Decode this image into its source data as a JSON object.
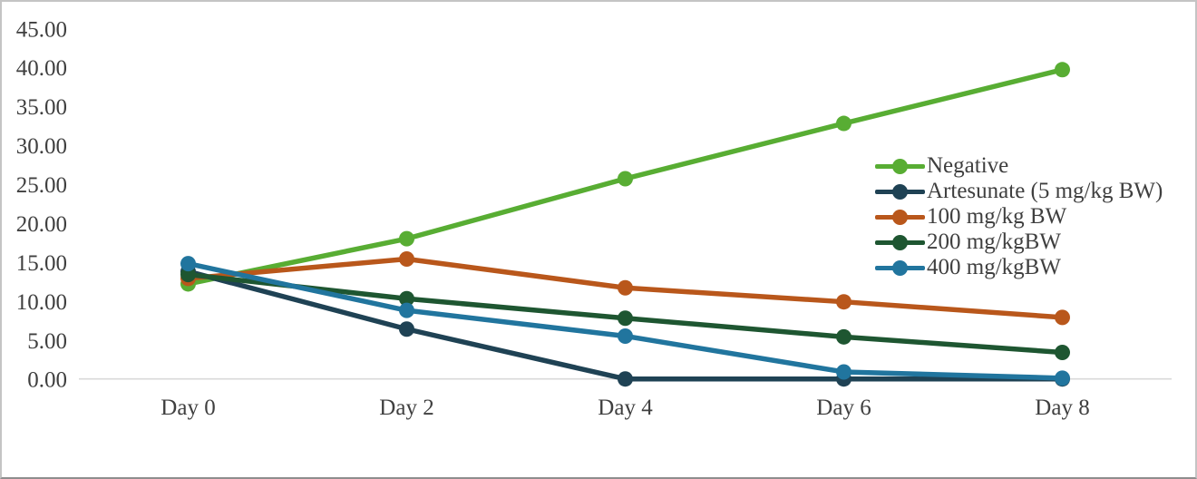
{
  "chart_data": {
    "type": "line",
    "title": "",
    "xlabel": "",
    "ylabel": "",
    "categories": [
      "Day 0",
      "Day 2",
      "Day 4",
      "Day 6",
      "Day 8"
    ],
    "series": [
      {
        "name": "Negative",
        "color": "#58ad33",
        "values": [
          12.2,
          18.0,
          25.7,
          32.8,
          39.7
        ]
      },
      {
        "name": "Artesunate (5 mg/kg BW)",
        "color": "#1f4254",
        "values": [
          13.8,
          6.4,
          0.0,
          0.0,
          0.0
        ]
      },
      {
        "name": "100 mg/kg BW",
        "color": "#b9571b",
        "values": [
          12.9,
          15.4,
          11.7,
          9.9,
          7.9
        ]
      },
      {
        "name": "200 mg/kgBW",
        "color": "#1e5631",
        "values": [
          13.4,
          10.3,
          7.8,
          5.4,
          3.4
        ]
      },
      {
        "name": "400 mg/kgBW",
        "color": "#21759e",
        "values": [
          14.8,
          8.8,
          5.5,
          0.9,
          0.1
        ]
      }
    ],
    "ylim": [
      0,
      45
    ],
    "ytick_labels": [
      "0.00",
      "5.00",
      "10.00",
      "15.00",
      "20.00",
      "25.00",
      "30.00",
      "35.00",
      "40.00",
      "45.00"
    ],
    "grid": false,
    "legend_position": "right-middle",
    "axis_text_color": "#3f3f3f",
    "axis_line_color": "#d9d9d9"
  }
}
